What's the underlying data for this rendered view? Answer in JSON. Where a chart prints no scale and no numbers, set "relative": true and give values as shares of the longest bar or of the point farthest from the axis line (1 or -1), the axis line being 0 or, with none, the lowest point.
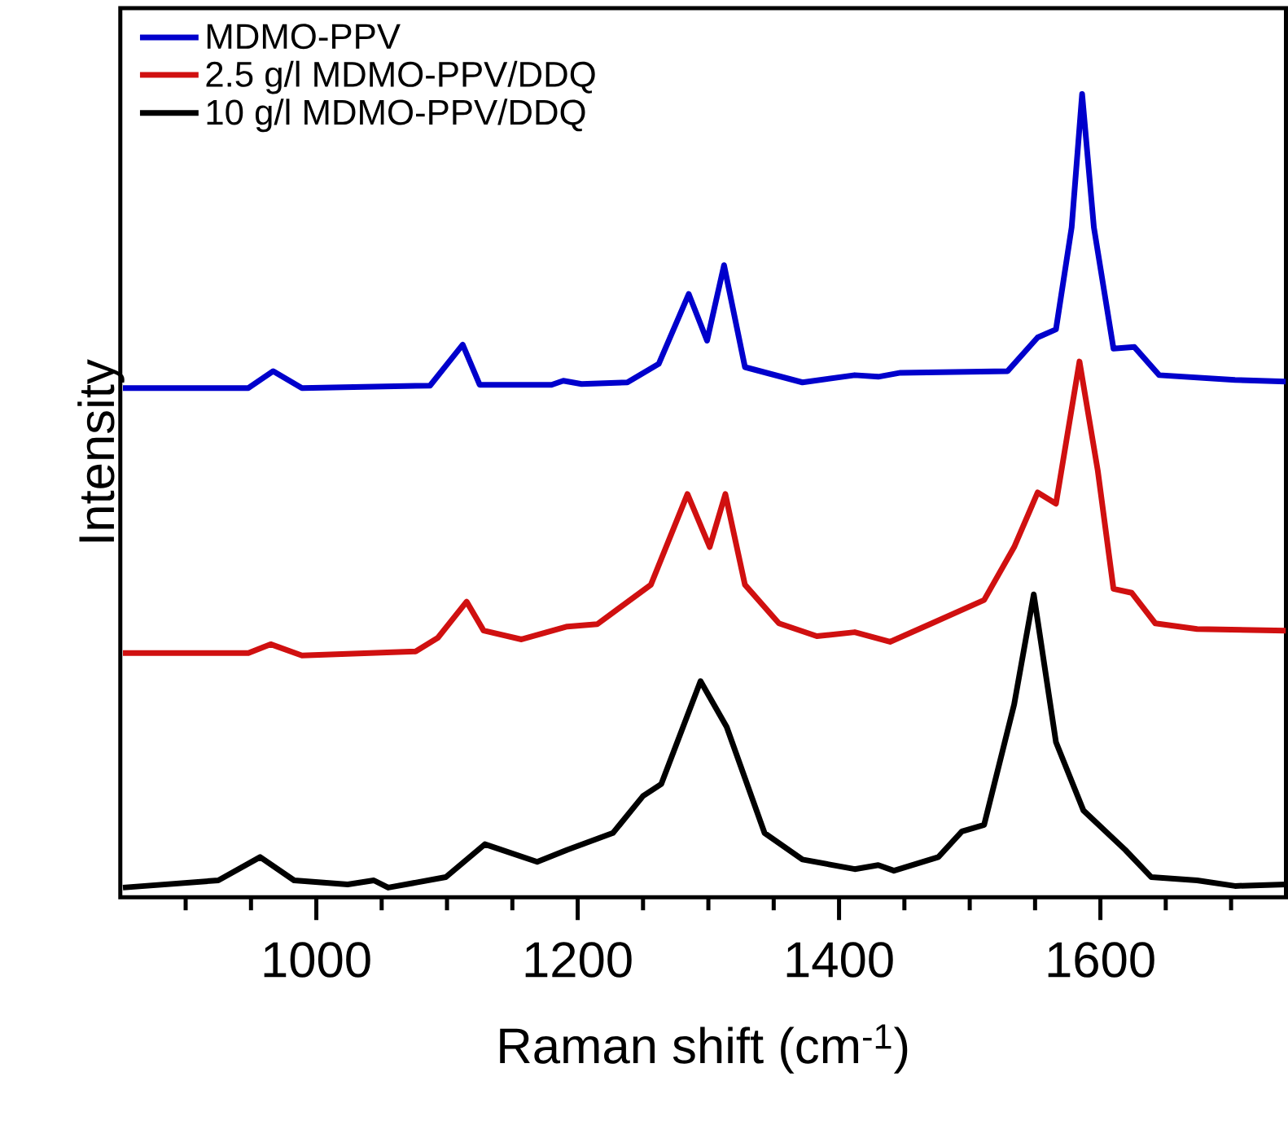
{
  "chart_data": {
    "type": "line",
    "relative": true,
    "xlabel": "Raman shift (cm$^{-1}$)",
    "ylabel": "Intensity",
    "xlim": [
      850,
      1742
    ],
    "xticks": [
      {
        "value": 900,
        "label": null
      },
      {
        "value": 950,
        "label": null
      },
      1000,
      {
        "value": 1050,
        "label": null
      },
      {
        "value": 1100,
        "label": null
      },
      {
        "value": 1150,
        "label": null
      },
      1200,
      {
        "value": 1250,
        "label": null
      },
      {
        "value": 1300,
        "label": null
      },
      {
        "value": 1350,
        "label": null
      },
      1400,
      {
        "value": 1450,
        "label": null
      },
      {
        "value": 1500,
        "label": null
      },
      {
        "value": 1550,
        "label": null
      },
      1600,
      {
        "value": 1650,
        "label": null
      },
      {
        "value": 1700,
        "label": null
      }
    ],
    "tick_labels": "x",
    "legend": "top left",
    "series": [
      {
        "name": "MDMO-PPV",
        "color": "#0000cc",
        "x": [
          852,
          948,
          967,
          989,
          1087,
          1112,
          1125,
          1180,
          1189,
          1203,
          1238,
          1262,
          1285,
          1299,
          1312,
          1328,
          1372,
          1412,
          1430,
          1447,
          1529,
          1552,
          1566,
          1578,
          1586,
          1595,
          1610,
          1626,
          1645,
          1703,
          1742
        ],
        "values": [
          0.634,
          0.634,
          0.655,
          0.634,
          0.637,
          0.688,
          0.638,
          0.638,
          0.643,
          0.639,
          0.641,
          0.664,
          0.751,
          0.693,
          0.787,
          0.66,
          0.641,
          0.65,
          0.648,
          0.653,
          0.655,
          0.697,
          0.707,
          0.834,
          1.0,
          0.834,
          0.683,
          0.685,
          0.65,
          0.644,
          0.642
        ]
      },
      {
        "name": "2.5 g/l MDMO-PPV/DDQ",
        "color": "#d01010",
        "x": [
          852,
          948,
          965,
          989,
          1076,
          1093,
          1115,
          1128,
          1157,
          1192,
          1215,
          1256,
          1284,
          1301,
          1313,
          1328,
          1354,
          1383,
          1412,
          1439,
          1471,
          1511,
          1534,
          1552,
          1566,
          1584,
          1598,
          1610,
          1624,
          1642,
          1674,
          1742
        ],
        "values": [
          0.304,
          0.304,
          0.315,
          0.301,
          0.306,
          0.323,
          0.368,
          0.332,
          0.321,
          0.337,
          0.34,
          0.389,
          0.502,
          0.436,
          0.502,
          0.389,
          0.341,
          0.325,
          0.33,
          0.318,
          0.341,
          0.37,
          0.436,
          0.504,
          0.49,
          0.667,
          0.531,
          0.384,
          0.379,
          0.341,
          0.334,
          0.332
        ]
      },
      {
        "name": "10 g/l MDMO-PPV/DDQ",
        "color": "#000000",
        "x": [
          852,
          925,
          957,
          983,
          1024,
          1044,
          1055,
          1099,
          1129,
          1169,
          1192,
          1227,
          1250,
          1264,
          1294,
          1314,
          1343,
          1372,
          1412,
          1430,
          1442,
          1476,
          1494,
          1511,
          1534,
          1549,
          1566,
          1587,
          1619,
          1639,
          1674,
          1703,
          1742
        ],
        "values": [
          0.012,
          0.021,
          0.05,
          0.021,
          0.016,
          0.021,
          0.012,
          0.025,
          0.066,
          0.044,
          0.059,
          0.08,
          0.126,
          0.141,
          0.269,
          0.212,
          0.08,
          0.047,
          0.035,
          0.04,
          0.033,
          0.05,
          0.082,
          0.09,
          0.24,
          0.377,
          0.193,
          0.108,
          0.059,
          0.025,
          0.021,
          0.014,
          0.016
        ]
      }
    ]
  }
}
